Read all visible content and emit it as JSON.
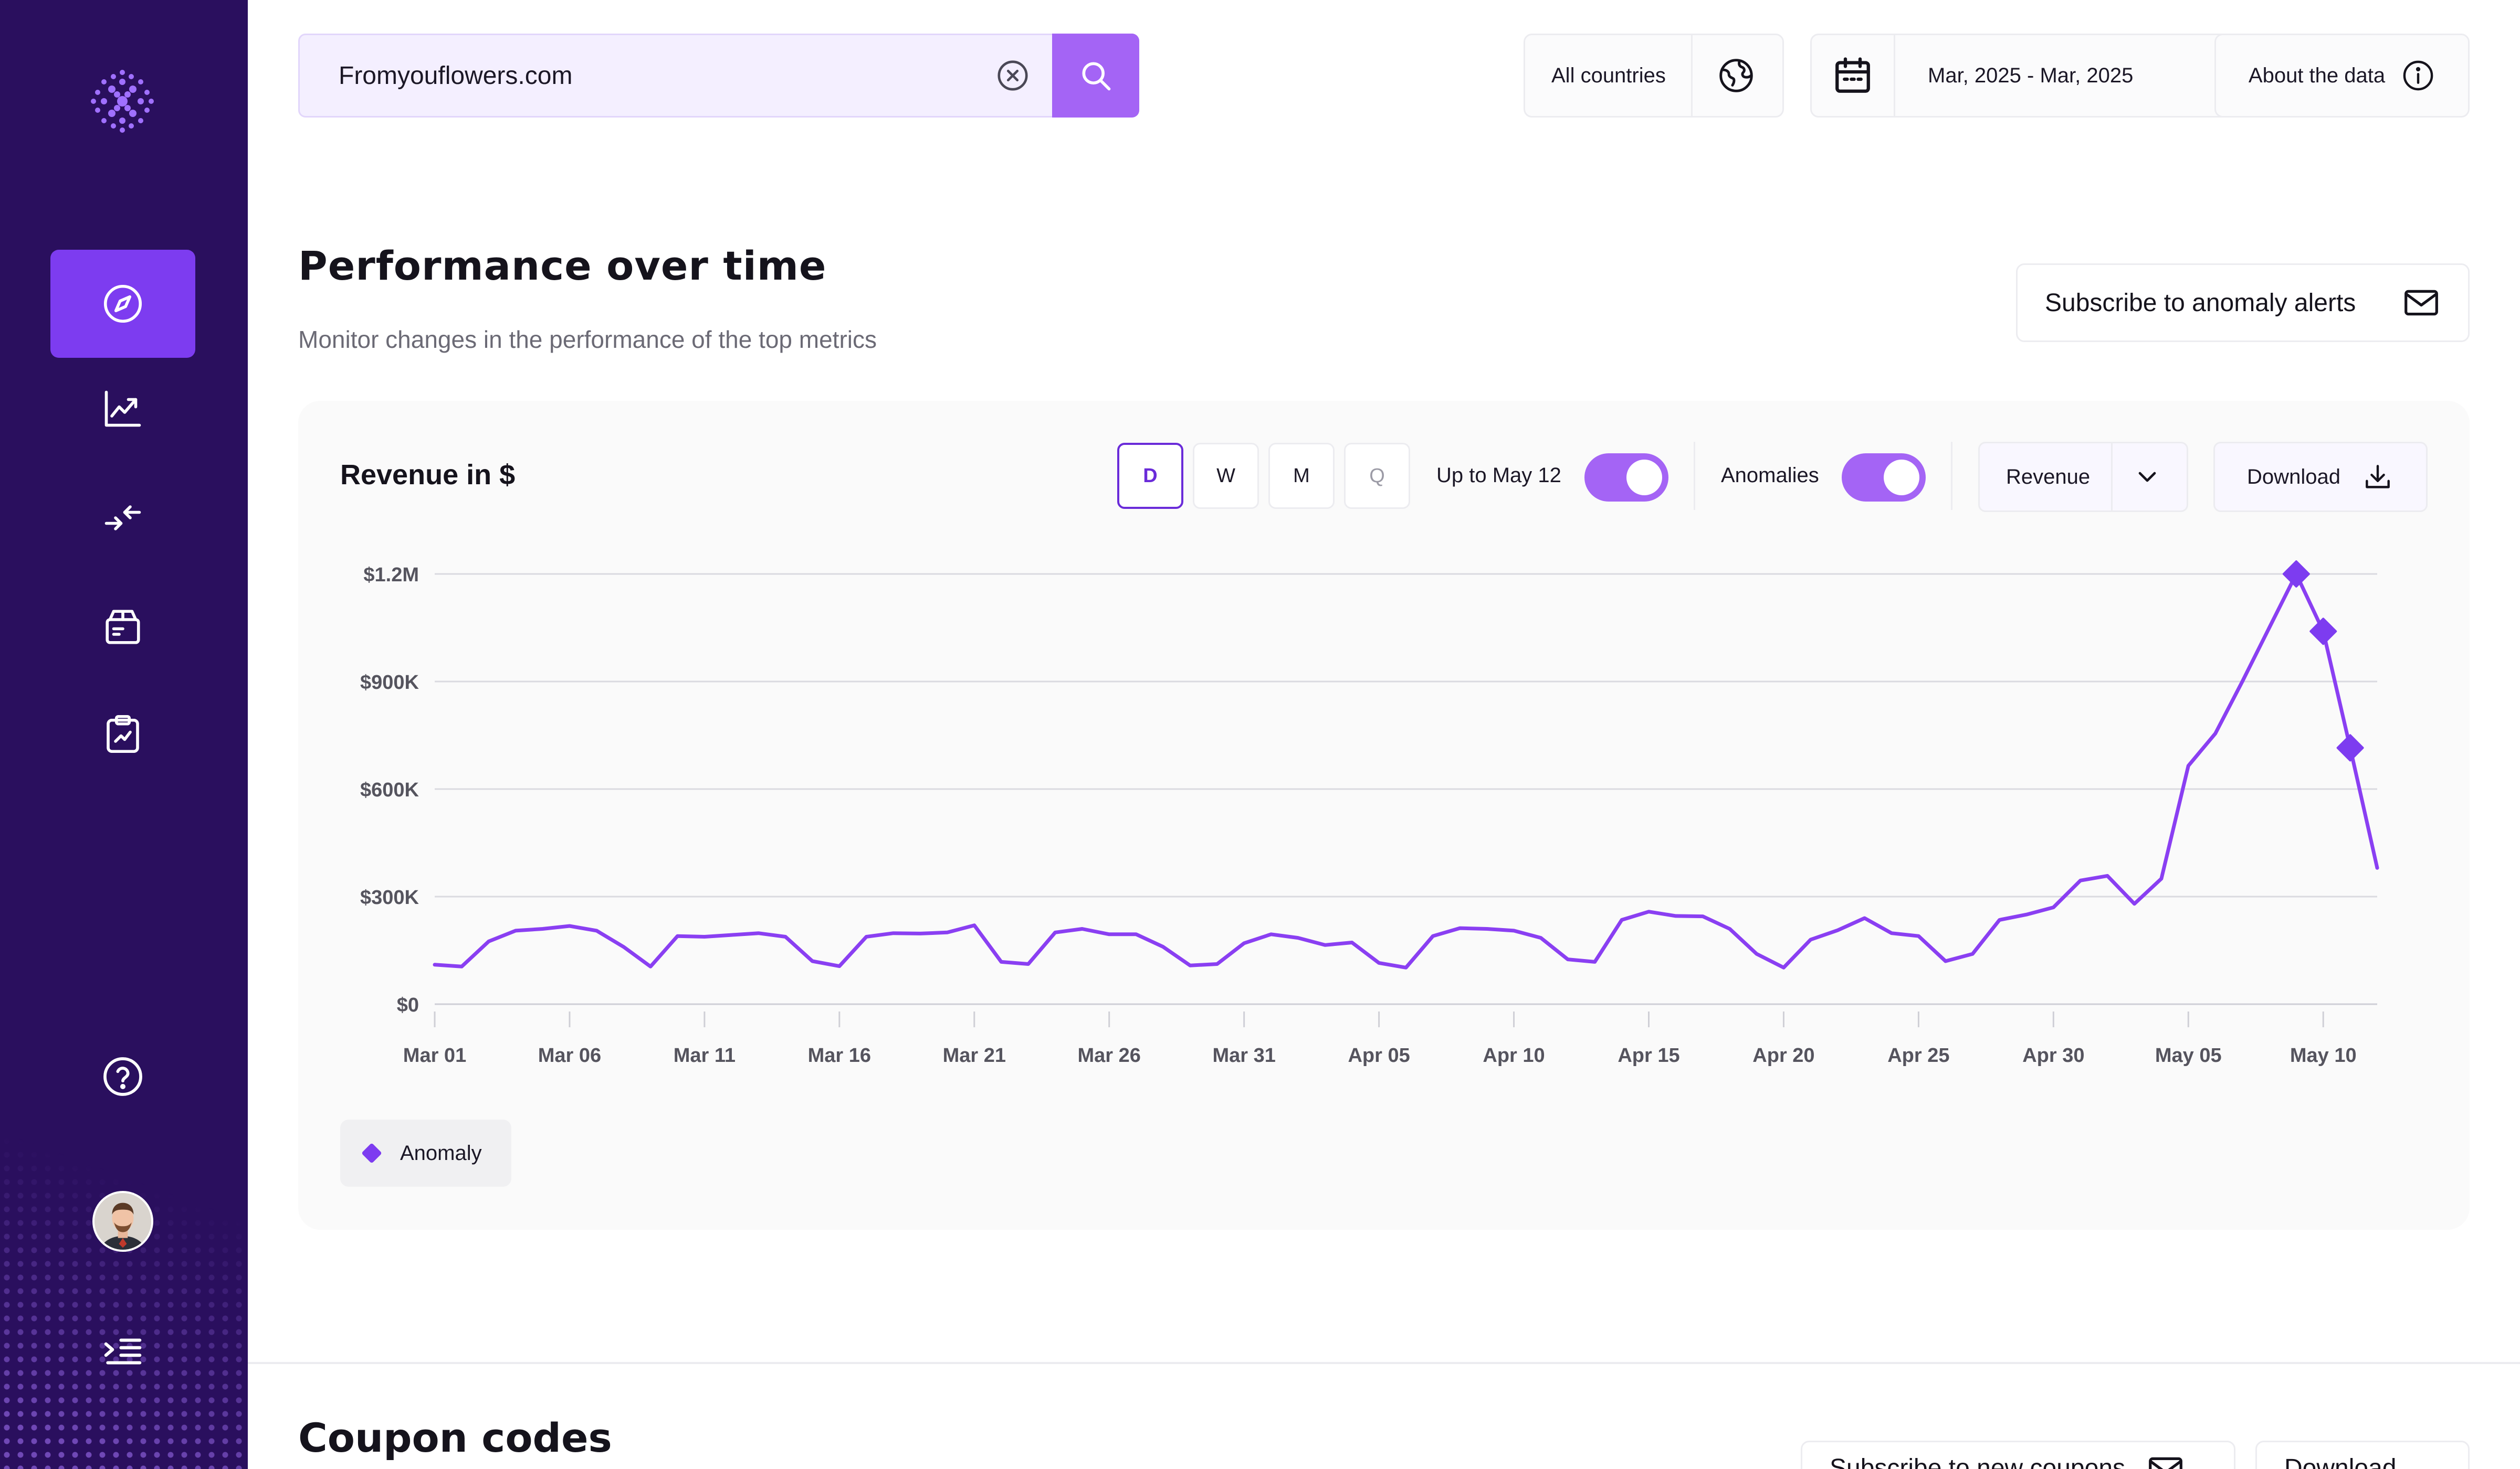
{
  "search": {
    "value": "Fromyouflowers.com"
  },
  "filters": {
    "country": "All countries",
    "date_range": "Mar, 2025 - Mar, 2025",
    "about": "About the data"
  },
  "section": {
    "title": "Performance over time",
    "subtitle": "Monitor changes in the performance of the top metrics",
    "subscribe": "Subscribe to anomaly alerts"
  },
  "card": {
    "title": "Revenue in $",
    "granularity": [
      {
        "label": "D",
        "state": "active"
      },
      {
        "label": "W",
        "state": "normal"
      },
      {
        "label": "M",
        "state": "normal"
      },
      {
        "label": "Q",
        "state": "disabled"
      }
    ],
    "up_to_label": "Up to May 12",
    "anomalies_label": "Anomalies",
    "metric": "Revenue",
    "download": "Download",
    "legend": "Anomaly"
  },
  "colors": {
    "accent": "#7d3cf0",
    "line": "#8a3ff2",
    "sidebar": "#2a0f5e",
    "toggle": "#a464f5"
  },
  "chart_data": {
    "type": "line",
    "title": "Revenue in $",
    "y_ticks": [
      {
        "value": 0,
        "label": "$0"
      },
      {
        "value": 300000,
        "label": "$300K"
      },
      {
        "value": 600000,
        "label": "$600K"
      },
      {
        "value": 900000,
        "label": "$900K"
      },
      {
        "value": 1200000,
        "label": "$1.2M"
      }
    ],
    "ylim": [
      0,
      1200000
    ],
    "x_ticks": [
      "Mar 01",
      "Mar 06",
      "Mar 11",
      "Mar 16",
      "Mar 21",
      "Mar 26",
      "Mar 31",
      "Apr 05",
      "Apr 10",
      "Apr 15",
      "Apr 20",
      "Apr 25",
      "Apr 30",
      "May 05",
      "May 10"
    ],
    "x_start": "Mar 01",
    "x_end": "May 12",
    "grid": true,
    "series": [
      {
        "values": [
          110000,
          105000,
          175000,
          205000,
          210000,
          218000,
          205000,
          160000,
          105000,
          190000,
          188000,
          193000,
          198000,
          188000,
          120000,
          106000,
          188000,
          198000,
          197000,
          200000,
          220000,
          118000,
          112000,
          200000,
          210000,
          195000,
          195000,
          160000,
          108000,
          112000,
          170000,
          195000,
          185000,
          165000,
          172000,
          115000,
          102000,
          190000,
          212000,
          210000,
          205000,
          185000,
          125000,
          118000,
          235000,
          258000,
          246000,
          245000,
          210000,
          140000,
          102000,
          180000,
          206000,
          240000,
          198000,
          190000,
          120000,
          140000,
          235000,
          250000,
          270000,
          345000,
          358000,
          280000,
          350000,
          665000,
          755000,
          900000,
          1050000,
          1200000,
          1040000,
          715000,
          380000
        ]
      }
    ],
    "anomalies": [
      {
        "index": 69,
        "value": 1200000
      },
      {
        "index": 70,
        "value": 1040000
      },
      {
        "index": 71,
        "value": 715000
      }
    ],
    "legend": [
      "Anomaly"
    ],
    "legend_position": "bottom-left"
  },
  "next_section": {
    "title": "Coupon codes",
    "subscribe": "Subscribe to new coupons",
    "download": "Download"
  }
}
